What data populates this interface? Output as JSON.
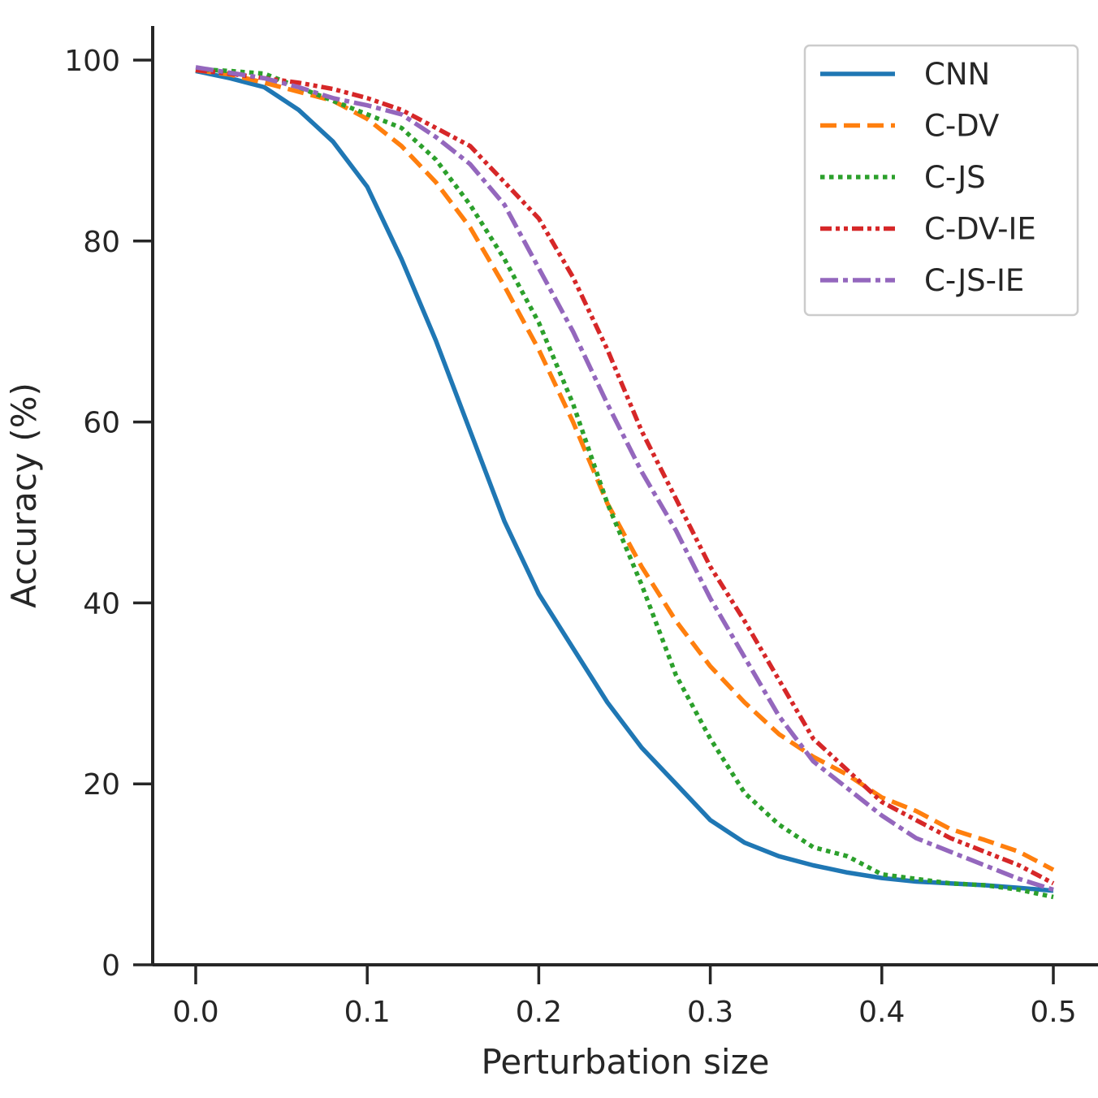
{
  "chart_data": {
    "type": "line",
    "title": "",
    "xlabel": "Perturbation size",
    "ylabel": "Accuracy (%)",
    "xlim": [
      -0.025,
      0.525
    ],
    "ylim": [
      0,
      104
    ],
    "xticks": [
      0.0,
      0.1,
      0.2,
      0.3,
      0.4,
      0.5
    ],
    "xtick_labels": [
      "0.0",
      "0.1",
      "0.2",
      "0.3",
      "0.4",
      "0.5"
    ],
    "yticks": [
      0,
      20,
      40,
      60,
      80,
      100
    ],
    "ytick_labels": [
      "0",
      "20",
      "40",
      "60",
      "80",
      "100"
    ],
    "grid": false,
    "legend_position": "top-right",
    "x": [
      0.0,
      0.02,
      0.04,
      0.06,
      0.08,
      0.1,
      0.12,
      0.14,
      0.16,
      0.18,
      0.2,
      0.22,
      0.24,
      0.26,
      0.28,
      0.3,
      0.32,
      0.34,
      0.36,
      0.38,
      0.4,
      0.42,
      0.44,
      0.46,
      0.48,
      0.5
    ],
    "series": [
      {
        "name": "CNN",
        "color": "#1f77b4",
        "dash": "solid",
        "values": [
          98.8,
          98.0,
          97.0,
          94.5,
          91.0,
          86.0,
          78.0,
          69.0,
          59.0,
          49.0,
          41.0,
          35.0,
          29.0,
          24.0,
          20.0,
          16.0,
          13.5,
          12.0,
          11.0,
          10.2,
          9.6,
          9.2,
          9.0,
          8.8,
          8.5,
          8.2
        ]
      },
      {
        "name": "C-DV",
        "color": "#ff7f0e",
        "dash": "dashed",
        "values": [
          98.9,
          98.4,
          97.5,
          96.5,
          95.5,
          93.5,
          90.5,
          86.5,
          81.5,
          75.0,
          68.0,
          60.0,
          51.0,
          44.0,
          38.0,
          33.0,
          29.0,
          25.5,
          23.0,
          21.0,
          18.5,
          17.0,
          15.0,
          13.8,
          12.5,
          10.5
        ]
      },
      {
        "name": "C-JS",
        "color": "#2ca02c",
        "dash": "dotted",
        "values": [
          99.0,
          98.8,
          98.5,
          97.0,
          95.5,
          94.0,
          92.5,
          89.0,
          84.0,
          78.0,
          71.0,
          62.0,
          51.0,
          42.0,
          32.0,
          25.0,
          19.0,
          15.5,
          13.0,
          12.0,
          10.0,
          9.5,
          9.0,
          8.8,
          8.3,
          7.5
        ]
      },
      {
        "name": "C-DV-IE",
        "color": "#d62728",
        "dash": "dashdotdot",
        "values": [
          98.9,
          98.5,
          98.0,
          97.5,
          96.8,
          95.8,
          94.5,
          92.5,
          90.5,
          86.5,
          82.5,
          76.0,
          68.0,
          59.0,
          51.5,
          44.0,
          38.0,
          31.5,
          25.0,
          21.5,
          18.0,
          16.0,
          14.0,
          12.5,
          11.0,
          9.0
        ]
      },
      {
        "name": "C-JS-IE",
        "color": "#9467bd",
        "dash": "dashdot",
        "values": [
          99.2,
          98.6,
          98.0,
          97.0,
          95.8,
          95.0,
          94.0,
          91.5,
          88.5,
          84.0,
          77.0,
          70.0,
          62.0,
          54.5,
          48.0,
          40.5,
          34.0,
          27.5,
          22.5,
          19.5,
          16.5,
          14.0,
          12.5,
          11.0,
          9.5,
          8.3
        ]
      }
    ]
  }
}
